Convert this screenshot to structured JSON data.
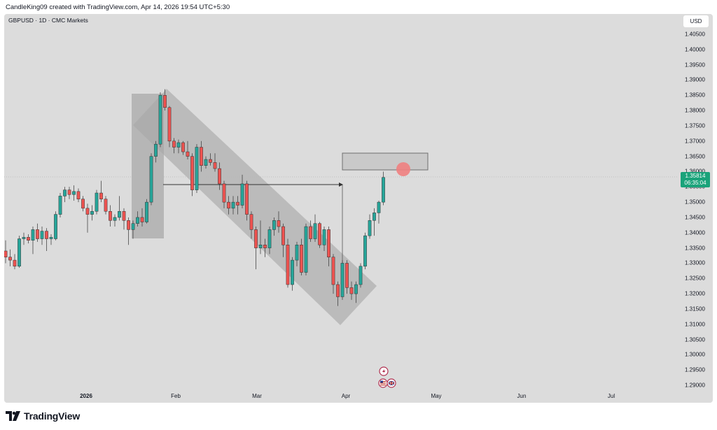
{
  "header": {
    "credit": "CandleKing09 created with TradingView.com, Apr 14, 2026 19:54 UTC+5:30"
  },
  "chart": {
    "symbol_line": "GBPUSD · 1D · CMC Markets",
    "currency_button": "USD",
    "price_badge": {
      "price": "1.35814",
      "countdown": "06:35:04"
    },
    "price_axis_labels": [
      "1.40500",
      "1.40000",
      "1.39500",
      "1.39000",
      "1.38500",
      "1.38000",
      "1.37500",
      "1.37000",
      "1.36500",
      "1.36000",
      "1.35500",
      "1.35000",
      "1.34500",
      "1.34000",
      "1.33500",
      "1.33000",
      "1.32500",
      "1.32000",
      "1.31500",
      "1.31000",
      "1.30500",
      "1.30000",
      "1.29500",
      "1.29000"
    ],
    "time_axis_labels": [
      {
        "label": "2026",
        "bold": true
      },
      {
        "label": "Feb",
        "bold": false
      },
      {
        "label": "Mar",
        "bold": false
      },
      {
        "label": "Apr",
        "bold": false
      },
      {
        "label": "May",
        "bold": false
      },
      {
        "label": "Jun",
        "bold": false
      },
      {
        "label": "Jul",
        "bold": false
      }
    ],
    "colors": {
      "up": "#26a69a",
      "down": "#ef5350",
      "background": "#dcdcdc",
      "shade": "#a9a9a9",
      "marker": "#f08080"
    },
    "icons": [
      "tradingview-logo-icon",
      "lightning-event-icon",
      "us-flag-event-icon",
      "uk-flag-event-icon"
    ]
  },
  "footer": {
    "brand": "TradingView"
  },
  "chart_data": {
    "type": "candlestick",
    "title": "GBPUSD · 1D · CMC Markets",
    "y_unit": "USD",
    "ylim": [
      1.2875,
      1.4075
    ],
    "current_price": 1.35814,
    "grid": false,
    "candles": [
      {
        "o": 1.334,
        "h": 1.3375,
        "l": 1.33,
        "c": 1.332
      },
      {
        "o": 1.332,
        "h": 1.3345,
        "l": 1.329,
        "c": 1.331
      },
      {
        "o": 1.331,
        "h": 1.333,
        "l": 1.328,
        "c": 1.329
      },
      {
        "o": 1.329,
        "h": 1.339,
        "l": 1.3285,
        "c": 1.338
      },
      {
        "o": 1.338,
        "h": 1.34,
        "l": 1.336,
        "c": 1.3385
      },
      {
        "o": 1.3385,
        "h": 1.3395,
        "l": 1.3365,
        "c": 1.3375
      },
      {
        "o": 1.3375,
        "h": 1.342,
        "l": 1.333,
        "c": 1.341
      },
      {
        "o": 1.341,
        "h": 1.343,
        "l": 1.337,
        "c": 1.338
      },
      {
        "o": 1.338,
        "h": 1.342,
        "l": 1.336,
        "c": 1.3405
      },
      {
        "o": 1.3405,
        "h": 1.3415,
        "l": 1.334,
        "c": 1.338
      },
      {
        "o": 1.338,
        "h": 1.3395,
        "l": 1.336,
        "c": 1.3385
      },
      {
        "o": 1.338,
        "h": 1.347,
        "l": 1.3375,
        "c": 1.346
      },
      {
        "o": 1.346,
        "h": 1.353,
        "l": 1.345,
        "c": 1.352
      },
      {
        "o": 1.352,
        "h": 1.355,
        "l": 1.35,
        "c": 1.354
      },
      {
        "o": 1.354,
        "h": 1.355,
        "l": 1.351,
        "c": 1.3525
      },
      {
        "o": 1.3525,
        "h": 1.3555,
        "l": 1.3505,
        "c": 1.3535
      },
      {
        "o": 1.3535,
        "h": 1.3545,
        "l": 1.35,
        "c": 1.351
      },
      {
        "o": 1.351,
        "h": 1.352,
        "l": 1.347,
        "c": 1.348
      },
      {
        "o": 1.348,
        "h": 1.3495,
        "l": 1.34,
        "c": 1.346
      },
      {
        "o": 1.346,
        "h": 1.349,
        "l": 1.344,
        "c": 1.347
      },
      {
        "o": 1.347,
        "h": 1.354,
        "l": 1.346,
        "c": 1.353
      },
      {
        "o": 1.353,
        "h": 1.357,
        "l": 1.35,
        "c": 1.351
      },
      {
        "o": 1.351,
        "h": 1.352,
        "l": 1.346,
        "c": 1.347
      },
      {
        "o": 1.347,
        "h": 1.349,
        "l": 1.342,
        "c": 1.344
      },
      {
        "o": 1.344,
        "h": 1.346,
        "l": 1.342,
        "c": 1.345
      },
      {
        "o": 1.345,
        "h": 1.352,
        "l": 1.344,
        "c": 1.347
      },
      {
        "o": 1.347,
        "h": 1.348,
        "l": 1.341,
        "c": 1.344
      },
      {
        "o": 1.344,
        "h": 1.345,
        "l": 1.336,
        "c": 1.341
      },
      {
        "o": 1.341,
        "h": 1.344,
        "l": 1.338,
        "c": 1.343
      },
      {
        "o": 1.343,
        "h": 1.347,
        "l": 1.342,
        "c": 1.345
      },
      {
        "o": 1.345,
        "h": 1.348,
        "l": 1.342,
        "c": 1.3435
      },
      {
        "o": 1.3435,
        "h": 1.351,
        "l": 1.343,
        "c": 1.35
      },
      {
        "o": 1.35,
        "h": 1.366,
        "l": 1.349,
        "c": 1.365
      },
      {
        "o": 1.365,
        "h": 1.37,
        "l": 1.363,
        "c": 1.369
      },
      {
        "o": 1.369,
        "h": 1.386,
        "l": 1.368,
        "c": 1.385
      },
      {
        "o": 1.385,
        "h": 1.387,
        "l": 1.38,
        "c": 1.381
      },
      {
        "o": 1.381,
        "h": 1.3815,
        "l": 1.368,
        "c": 1.37
      },
      {
        "o": 1.37,
        "h": 1.371,
        "l": 1.366,
        "c": 1.368
      },
      {
        "o": 1.368,
        "h": 1.3705,
        "l": 1.366,
        "c": 1.3695
      },
      {
        "o": 1.3695,
        "h": 1.37,
        "l": 1.3655,
        "c": 1.3665
      },
      {
        "o": 1.3665,
        "h": 1.37,
        "l": 1.364,
        "c": 1.365
      },
      {
        "o": 1.365,
        "h": 1.366,
        "l": 1.352,
        "c": 1.354
      },
      {
        "o": 1.354,
        "h": 1.369,
        "l": 1.353,
        "c": 1.368
      },
      {
        "o": 1.368,
        "h": 1.37,
        "l": 1.36,
        "c": 1.362
      },
      {
        "o": 1.362,
        "h": 1.365,
        "l": 1.361,
        "c": 1.364
      },
      {
        "o": 1.364,
        "h": 1.366,
        "l": 1.362,
        "c": 1.363
      },
      {
        "o": 1.363,
        "h": 1.366,
        "l": 1.36,
        "c": 1.361
      },
      {
        "o": 1.361,
        "h": 1.363,
        "l": 1.354,
        "c": 1.356
      },
      {
        "o": 1.356,
        "h": 1.357,
        "l": 1.348,
        "c": 1.35
      },
      {
        "o": 1.35,
        "h": 1.352,
        "l": 1.346,
        "c": 1.348
      },
      {
        "o": 1.348,
        "h": 1.352,
        "l": 1.346,
        "c": 1.35
      },
      {
        "o": 1.35,
        "h": 1.352,
        "l": 1.346,
        "c": 1.349
      },
      {
        "o": 1.349,
        "h": 1.359,
        "l": 1.348,
        "c": 1.356
      },
      {
        "o": 1.356,
        "h": 1.357,
        "l": 1.344,
        "c": 1.346
      },
      {
        "o": 1.346,
        "h": 1.347,
        "l": 1.338,
        "c": 1.341
      },
      {
        "o": 1.341,
        "h": 1.342,
        "l": 1.328,
        "c": 1.335
      },
      {
        "o": 1.335,
        "h": 1.344,
        "l": 1.333,
        "c": 1.336
      },
      {
        "o": 1.336,
        "h": 1.338,
        "l": 1.332,
        "c": 1.335
      },
      {
        "o": 1.335,
        "h": 1.342,
        "l": 1.333,
        "c": 1.341
      },
      {
        "o": 1.341,
        "h": 1.345,
        "l": 1.339,
        "c": 1.344
      },
      {
        "o": 1.344,
        "h": 1.347,
        "l": 1.34,
        "c": 1.342
      },
      {
        "o": 1.342,
        "h": 1.343,
        "l": 1.332,
        "c": 1.336
      },
      {
        "o": 1.336,
        "h": 1.338,
        "l": 1.322,
        "c": 1.323
      },
      {
        "o": 1.323,
        "h": 1.332,
        "l": 1.321,
        "c": 1.331
      },
      {
        "o": 1.331,
        "h": 1.337,
        "l": 1.329,
        "c": 1.336
      },
      {
        "o": 1.336,
        "h": 1.338,
        "l": 1.326,
        "c": 1.327
      },
      {
        "o": 1.327,
        "h": 1.343,
        "l": 1.326,
        "c": 1.342
      },
      {
        "o": 1.342,
        "h": 1.344,
        "l": 1.337,
        "c": 1.338
      },
      {
        "o": 1.338,
        "h": 1.346,
        "l": 1.337,
        "c": 1.343
      },
      {
        "o": 1.343,
        "h": 1.3435,
        "l": 1.335,
        "c": 1.336
      },
      {
        "o": 1.336,
        "h": 1.342,
        "l": 1.334,
        "c": 1.341
      },
      {
        "o": 1.341,
        "h": 1.342,
        "l": 1.329,
        "c": 1.332
      },
      {
        "o": 1.332,
        "h": 1.333,
        "l": 1.32,
        "c": 1.323
      },
      {
        "o": 1.323,
        "h": 1.324,
        "l": 1.316,
        "c": 1.319
      },
      {
        "o": 1.319,
        "h": 1.331,
        "l": 1.318,
        "c": 1.33
      },
      {
        "o": 1.33,
        "h": 1.331,
        "l": 1.32,
        "c": 1.322
      },
      {
        "o": 1.322,
        "h": 1.324,
        "l": 1.318,
        "c": 1.32
      },
      {
        "o": 1.32,
        "h": 1.324,
        "l": 1.317,
        "c": 1.323
      },
      {
        "o": 1.323,
        "h": 1.33,
        "l": 1.322,
        "c": 1.329
      },
      {
        "o": 1.329,
        "h": 1.34,
        "l": 1.328,
        "c": 1.339
      },
      {
        "o": 1.339,
        "h": 1.346,
        "l": 1.338,
        "c": 1.344
      },
      {
        "o": 1.344,
        "h": 1.348,
        "l": 1.339,
        "c": 1.3465
      },
      {
        "o": 1.3465,
        "h": 1.3505,
        "l": 1.343,
        "c": 1.35
      },
      {
        "o": 1.35,
        "h": 1.36,
        "l": 1.349,
        "c": 1.3581
      }
    ]
  }
}
